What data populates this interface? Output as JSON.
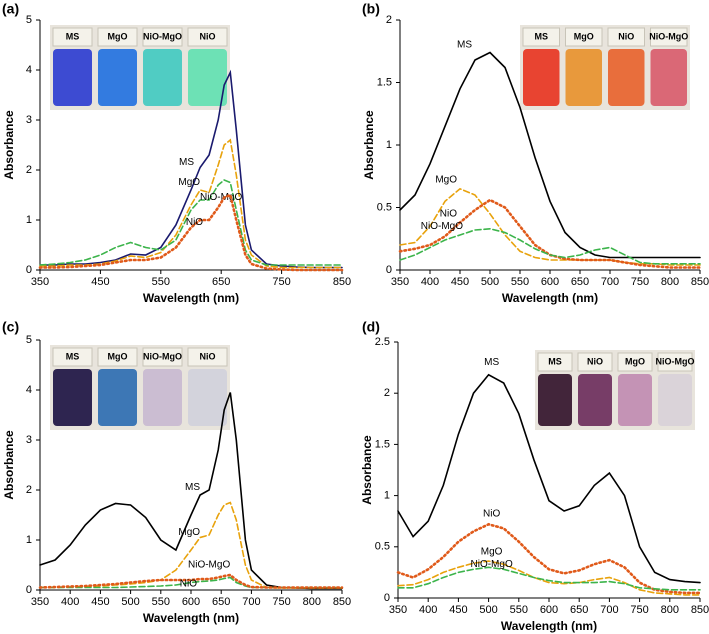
{
  "chart_data": [
    {
      "type": "line",
      "label": "(a)",
      "x_label": "Wavelength (nm)",
      "y_label": "Absorbance",
      "vial_labels": [
        "MS",
        "MgO",
        "NiO-MgO",
        "NiO"
      ],
      "x": [
        350,
        375,
        400,
        425,
        450,
        475,
        500,
        525,
        550,
        575,
        600,
        615,
        630,
        645,
        655,
        665,
        675,
        690,
        700,
        725,
        750,
        775,
        800,
        825,
        850
      ],
      "xlim": [
        350,
        850
      ],
      "xticks": [
        350,
        450,
        550,
        650,
        750,
        850
      ],
      "ylim": [
        0,
        5
      ],
      "yticks": [
        0,
        1,
        2,
        3,
        4,
        5
      ],
      "series": [
        {
          "name": "MS",
          "color": "#1a1a6e",
          "dash": "solid",
          "values": [
            0.1,
            0.1,
            0.12,
            0.12,
            0.15,
            0.2,
            0.32,
            0.3,
            0.45,
            0.9,
            1.6,
            2.05,
            2.3,
            3.0,
            3.7,
            3.95,
            2.8,
            0.9,
            0.4,
            0.12,
            0.08,
            0.06,
            0.05,
            0.05,
            0.05
          ]
        },
        {
          "name": "MgO",
          "color": "#e8a20c",
          "dash": "dashed",
          "values": [
            0.08,
            0.08,
            0.1,
            0.1,
            0.12,
            0.18,
            0.28,
            0.25,
            0.35,
            0.7,
            1.3,
            1.6,
            1.55,
            2.1,
            2.5,
            2.6,
            1.9,
            0.6,
            0.3,
            0.08,
            0.05,
            0.05,
            0.05,
            0.05,
            0.05
          ]
        },
        {
          "name": "NiO-MgO",
          "color": "#3cb44b",
          "dash": "dashed",
          "values": [
            0.1,
            0.12,
            0.15,
            0.2,
            0.3,
            0.45,
            0.55,
            0.45,
            0.4,
            0.6,
            1.2,
            1.4,
            1.4,
            1.7,
            1.8,
            1.75,
            1.2,
            0.4,
            0.2,
            0.1,
            0.1,
            0.1,
            0.1,
            0.1,
            0.1
          ]
        },
        {
          "name": "NiO",
          "color": "#e05a1a",
          "dash": "dotted",
          "values": [
            0.05,
            0.05,
            0.06,
            0.08,
            0.1,
            0.15,
            0.2,
            0.2,
            0.25,
            0.45,
            0.85,
            1.0,
            1.0,
            1.25,
            1.45,
            1.5,
            1.0,
            0.3,
            0.12,
            0.03,
            0.01,
            0.0,
            0.0,
            0.0,
            0.0
          ]
        }
      ]
    },
    {
      "type": "line",
      "label": "(b)",
      "x_label": "Wavelength (nm)",
      "y_label": "Absorbance",
      "vial_labels": [
        "MS",
        "MgO",
        "NiO",
        "NiO-MgO"
      ],
      "x": [
        350,
        375,
        400,
        425,
        450,
        475,
        500,
        525,
        550,
        575,
        600,
        625,
        650,
        675,
        700,
        725,
        750,
        775,
        800,
        825,
        850
      ],
      "xlim": [
        350,
        850
      ],
      "xticks": [
        350,
        400,
        450,
        500,
        550,
        600,
        650,
        700,
        750,
        800,
        850
      ],
      "ylim": [
        0,
        2
      ],
      "yticks": [
        0,
        0.5,
        1,
        1.5,
        2
      ],
      "series": [
        {
          "name": "MS",
          "color": "#000000",
          "dash": "solid",
          "values": [
            0.48,
            0.6,
            0.85,
            1.15,
            1.45,
            1.68,
            1.74,
            1.62,
            1.3,
            0.9,
            0.55,
            0.3,
            0.18,
            0.12,
            0.1,
            0.1,
            0.1,
            0.1,
            0.1,
            0.1,
            0.1
          ]
        },
        {
          "name": "MgO",
          "color": "#e8a20c",
          "dash": "dashed",
          "values": [
            0.2,
            0.22,
            0.35,
            0.55,
            0.65,
            0.6,
            0.45,
            0.28,
            0.15,
            0.1,
            0.08,
            0.08,
            0.08,
            0.08,
            0.08,
            0.06,
            0.05,
            0.05,
            0.04,
            0.04,
            0.04
          ]
        },
        {
          "name": "NiO",
          "color": "#e05a1a",
          "dash": "dotted",
          "values": [
            0.15,
            0.17,
            0.2,
            0.27,
            0.38,
            0.48,
            0.56,
            0.5,
            0.35,
            0.2,
            0.12,
            0.09,
            0.08,
            0.08,
            0.08,
            0.06,
            0.04,
            0.03,
            0.02,
            0.02,
            0.02
          ]
        },
        {
          "name": "NiO-MgO",
          "color": "#3cb44b",
          "dash": "dashed",
          "values": [
            0.08,
            0.12,
            0.18,
            0.24,
            0.28,
            0.32,
            0.33,
            0.3,
            0.24,
            0.17,
            0.12,
            0.1,
            0.12,
            0.16,
            0.18,
            0.12,
            0.06,
            0.05,
            0.05,
            0.05,
            0.05
          ]
        }
      ]
    },
    {
      "type": "line",
      "label": "(c)",
      "x_label": "Wavelength (nm)",
      "y_label": "Absorbance",
      "vial_labels": [
        "MS",
        "MgO",
        "NiO-MgO",
        "NiO"
      ],
      "x": [
        350,
        375,
        400,
        425,
        450,
        475,
        500,
        525,
        550,
        575,
        600,
        615,
        630,
        645,
        655,
        665,
        675,
        690,
        700,
        725,
        750,
        775,
        800,
        825,
        850
      ],
      "xlim": [
        350,
        850
      ],
      "xticks": [
        350,
        400,
        450,
        500,
        550,
        600,
        650,
        700,
        750,
        800,
        850
      ],
      "ylim": [
        0,
        5
      ],
      "yticks": [
        0,
        1,
        2,
        3,
        4,
        5
      ],
      "series": [
        {
          "name": "MS",
          "color": "#000000",
          "dash": "solid",
          "values": [
            0.5,
            0.6,
            0.9,
            1.3,
            1.6,
            1.73,
            1.7,
            1.45,
            1.0,
            0.8,
            1.5,
            1.9,
            2.0,
            2.8,
            3.6,
            3.95,
            3.0,
            1.0,
            0.4,
            0.1,
            0.05,
            0.04,
            0.03,
            0.03,
            0.03
          ]
        },
        {
          "name": "MgO",
          "color": "#e8a20c",
          "dash": "dashed",
          "values": [
            0.05,
            0.05,
            0.06,
            0.07,
            0.08,
            0.1,
            0.12,
            0.15,
            0.2,
            0.4,
            0.8,
            1.05,
            1.1,
            1.5,
            1.7,
            1.75,
            1.4,
            0.5,
            0.2,
            0.05,
            0.04,
            0.04,
            0.04,
            0.04,
            0.04
          ]
        },
        {
          "name": "NiO-MgO",
          "color": "#3cb44b",
          "dash": "dashed",
          "values": [
            0.05,
            0.05,
            0.05,
            0.05,
            0.05,
            0.05,
            0.06,
            0.07,
            0.08,
            0.1,
            0.15,
            0.17,
            0.18,
            0.2,
            0.23,
            0.25,
            0.15,
            0.08,
            0.05,
            0.05,
            0.05,
            0.05,
            0.05,
            0.05,
            0.05
          ]
        },
        {
          "name": "NiO",
          "color": "#e05a1a",
          "dash": "dotted",
          "values": [
            0.05,
            0.06,
            0.07,
            0.08,
            0.1,
            0.12,
            0.15,
            0.18,
            0.2,
            0.2,
            0.2,
            0.22,
            0.22,
            0.25,
            0.28,
            0.3,
            0.2,
            0.1,
            0.06,
            0.05,
            0.05,
            0.05,
            0.05,
            0.05,
            0.05
          ]
        }
      ]
    },
    {
      "type": "line",
      "label": "(d)",
      "x_label": "Wavelength (nm)",
      "y_label": "Absorbance",
      "vial_labels": [
        "MS",
        "NiO",
        "MgO",
        "NiO-MgO"
      ],
      "x": [
        350,
        375,
        400,
        425,
        450,
        475,
        500,
        525,
        550,
        575,
        600,
        625,
        650,
        675,
        700,
        725,
        750,
        775,
        800,
        825,
        850
      ],
      "xlim": [
        350,
        850
      ],
      "xticks": [
        350,
        400,
        450,
        500,
        550,
        600,
        650,
        700,
        750,
        800,
        850
      ],
      "ylim": [
        0,
        2.5
      ],
      "yticks": [
        0,
        0.5,
        1,
        1.5,
        2,
        2.5
      ],
      "series": [
        {
          "name": "MS",
          "color": "#000000",
          "dash": "solid",
          "values": [
            0.85,
            0.6,
            0.75,
            1.1,
            1.6,
            2.0,
            2.18,
            2.1,
            1.8,
            1.35,
            0.95,
            0.85,
            0.9,
            1.1,
            1.22,
            1.0,
            0.5,
            0.25,
            0.18,
            0.16,
            0.15
          ]
        },
        {
          "name": "NiO",
          "color": "#e05a1a",
          "dash": "dotted",
          "values": [
            0.25,
            0.2,
            0.28,
            0.4,
            0.55,
            0.65,
            0.72,
            0.68,
            0.55,
            0.4,
            0.28,
            0.24,
            0.27,
            0.33,
            0.37,
            0.3,
            0.15,
            0.08,
            0.06,
            0.05,
            0.05
          ]
        },
        {
          "name": "MgO",
          "color": "#e8a20c",
          "dash": "dashed",
          "values": [
            0.12,
            0.13,
            0.18,
            0.25,
            0.3,
            0.34,
            0.36,
            0.33,
            0.27,
            0.2,
            0.15,
            0.14,
            0.15,
            0.18,
            0.2,
            0.15,
            0.08,
            0.05,
            0.04,
            0.03,
            0.03
          ]
        },
        {
          "name": "NiO-MgO",
          "color": "#3cb44b",
          "dash": "dashed",
          "values": [
            0.1,
            0.1,
            0.14,
            0.2,
            0.25,
            0.28,
            0.3,
            0.28,
            0.24,
            0.2,
            0.17,
            0.15,
            0.15,
            0.15,
            0.16,
            0.14,
            0.1,
            0.09,
            0.08,
            0.08,
            0.08
          ]
        }
      ]
    }
  ]
}
